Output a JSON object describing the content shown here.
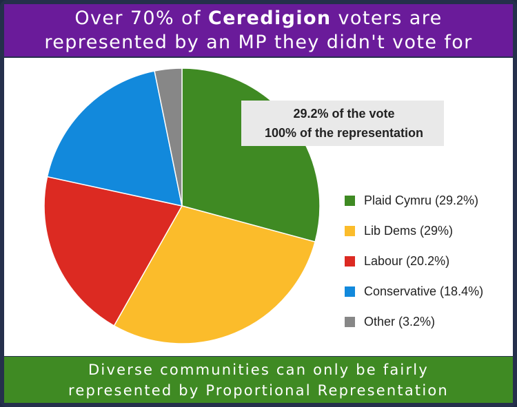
{
  "header": {
    "line1_prefix": "Over 70% of ",
    "line1_bold": "Ceredigion",
    "line1_suffix": " voters are",
    "line2": "represented by an MP they didn't vote for"
  },
  "callout": {
    "line1": "29.2% of the vote",
    "line2": "100% of the representation"
  },
  "footer": {
    "line1": "Diverse communities can only be fairly",
    "line2": "represented by Proportional Representation"
  },
  "colors": {
    "header_bg": "#6a1b9a",
    "footer_bg": "#3f8a23",
    "frame": "#25304c"
  },
  "chart_data": {
    "type": "pie",
    "legend_position": "right",
    "slices": [
      {
        "label": "Plaid Cymru (29.2%)",
        "value": 29.2,
        "color": "#3f8a23"
      },
      {
        "label": "Lib Dems (29%)",
        "value": 29.0,
        "color": "#fbbc2b"
      },
      {
        "label": "Labour (20.2%)",
        "value": 20.2,
        "color": "#dc2a22"
      },
      {
        "label": "Conservative (18.4%)",
        "value": 18.4,
        "color": "#1289dc"
      },
      {
        "label": "Other (3.2%)",
        "value": 3.2,
        "color": "#878787"
      }
    ]
  }
}
